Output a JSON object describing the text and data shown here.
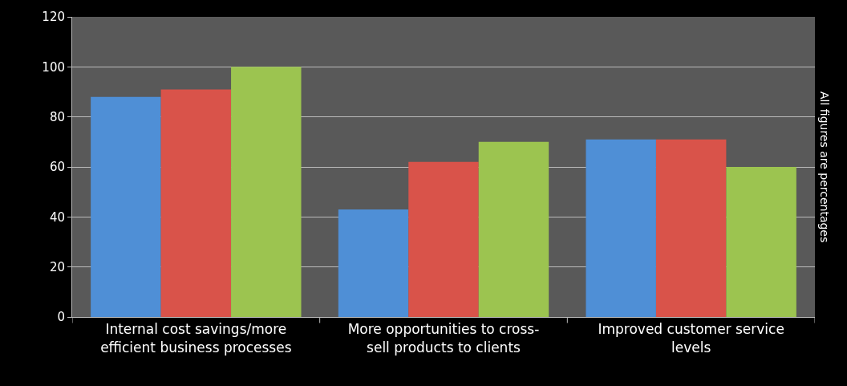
{
  "chart_data": {
    "type": "bar",
    "categories": [
      "Internal cost savings/more\nefficient business processes",
      "More opportunities to cross-\nsell products to clients",
      "Improved customer service\nlevels"
    ],
    "series": [
      {
        "color": "#4f8fd6",
        "values": [
          88,
          43,
          71
        ]
      },
      {
        "color": "#d9534a",
        "values": [
          91,
          62,
          71
        ]
      },
      {
        "color": "#9cc450",
        "values": [
          100,
          70,
          60
        ]
      }
    ],
    "ylim": [
      0,
      120
    ],
    "yticks": [
      0,
      20,
      40,
      60,
      80,
      100,
      120
    ],
    "grid": "y",
    "annotations": [
      "All figures are percentages"
    ]
  }
}
